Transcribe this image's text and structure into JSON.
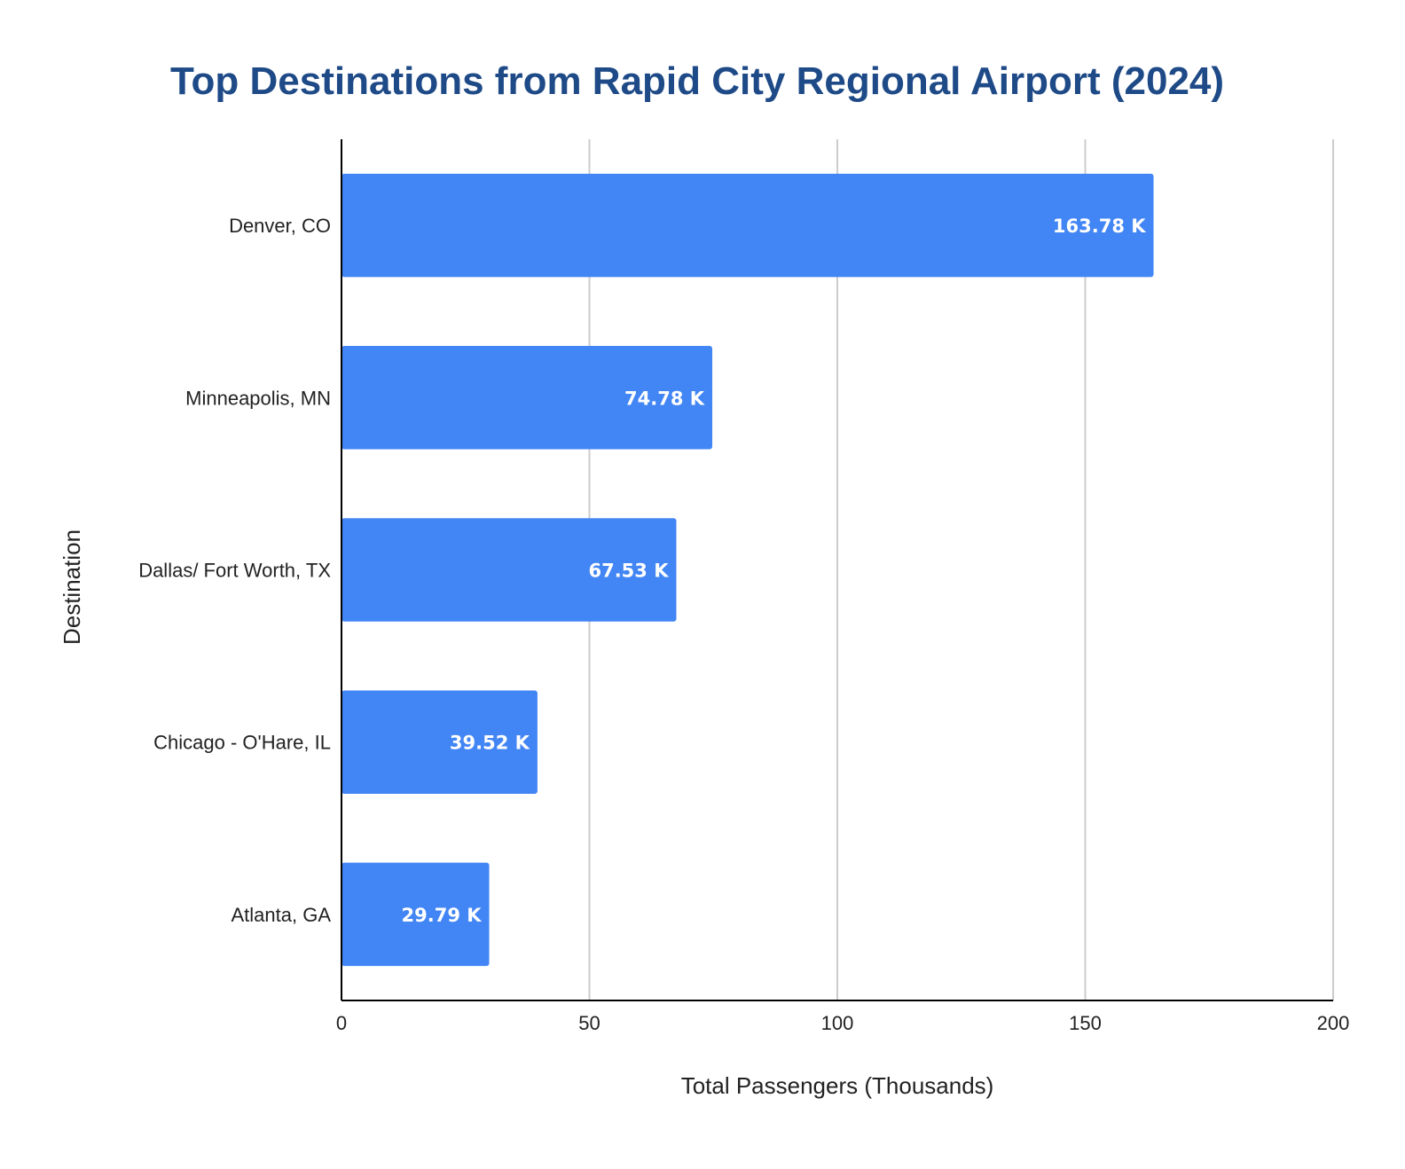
{
  "chart_data": {
    "type": "bar",
    "orientation": "horizontal",
    "title": "Top Destinations from Rapid City Regional Airport (2024)",
    "xlabel": "Total Passengers (Thousands)",
    "ylabel": "Destination",
    "categories": [
      "Denver, CO",
      "Minneapolis, MN",
      "Dallas/ Fort Worth, TX",
      "Chicago - O'Hare, IL",
      "Atlanta, GA"
    ],
    "values": [
      163.78,
      74.78,
      67.53,
      39.52,
      29.79
    ],
    "data_labels": [
      "163.78 K",
      "74.78 K",
      "67.53 K",
      "39.52 K",
      "29.79 K"
    ],
    "xlim": [
      0,
      200
    ],
    "xticks": [
      0,
      50,
      100,
      150,
      200
    ],
    "grid": true,
    "legend": "none",
    "colors": {
      "bar": "#4285f4",
      "title": "#1e4a87",
      "grid": "#cccccc",
      "axis": "#000000"
    }
  }
}
